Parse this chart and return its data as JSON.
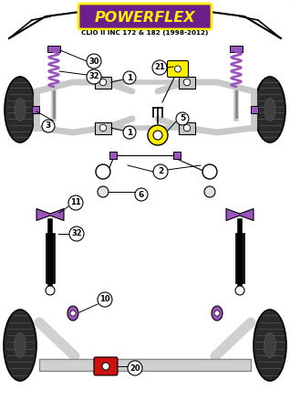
{
  "title": "POWERFLEX",
  "subtitle": "CLIO II INC 172 & 182 (1998-2012)",
  "bg_color": "#ffffff",
  "purple": "#9955BB",
  "yellow": "#FFEE00",
  "red": "#CC1111",
  "lgray": "#C8C8C8",
  "dgray": "#444444",
  "tire_color": "#2a2a2a",
  "title_bg": "#6B1F8B",
  "title_yellow": "#FFEE00",
  "black": "#000000",
  "white": "#ffffff",
  "silver": "#D0D0D0"
}
